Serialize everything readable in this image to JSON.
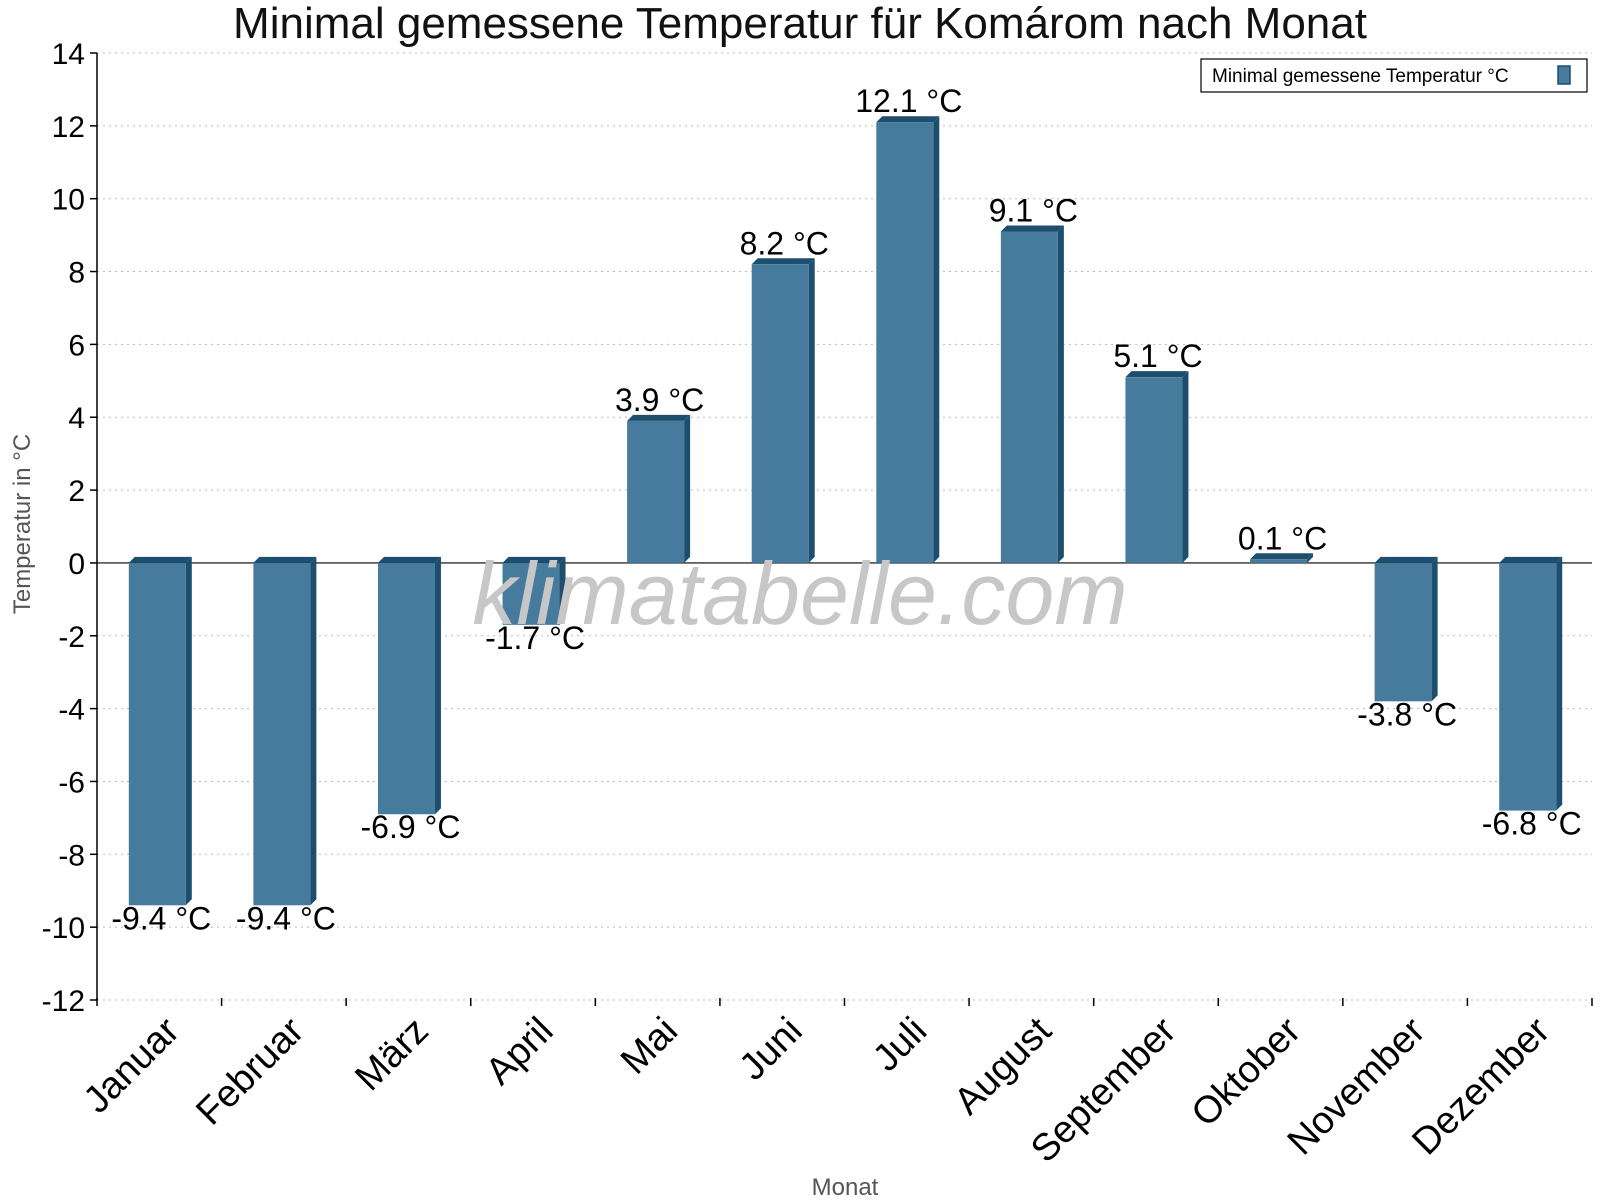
{
  "chart_data": {
    "type": "bar",
    "title": "Minimal gemessene Temperatur für Komárom nach Monat",
    "xlabel": "Monat",
    "ylabel": "Temperatur in °C",
    "ylim": [
      -12,
      14
    ],
    "yticks": [
      -12,
      -10,
      -8,
      -6,
      -4,
      -2,
      0,
      2,
      4,
      6,
      8,
      10,
      12,
      14
    ],
    "grid": true,
    "legend_position": "top-right",
    "categories": [
      "Januar",
      "Februar",
      "März",
      "April",
      "Mai",
      "Juni",
      "Juli",
      "August",
      "September",
      "Oktober",
      "November",
      "Dezember"
    ],
    "series": [
      {
        "name": "Minimal gemessene Temperatur °C",
        "values": [
          -9.4,
          -9.4,
          -6.9,
          -1.7,
          3.9,
          8.2,
          12.1,
          9.1,
          5.1,
          0.1,
          -3.8,
          -6.8
        ],
        "labels": [
          "-9.4 °C",
          "-9.4 °C",
          "-6.9 °C",
          "-1.7 °C",
          "3.9 °C",
          "8.2 °C",
          "12.1 °C",
          "9.1 °C",
          "5.1 °C",
          "0.1 °C",
          "-3.8 °C",
          "-6.8 °C"
        ],
        "color": "#467b9d",
        "side_color": "#1e4e6e"
      }
    ],
    "watermark": "klimatabelle.com"
  }
}
